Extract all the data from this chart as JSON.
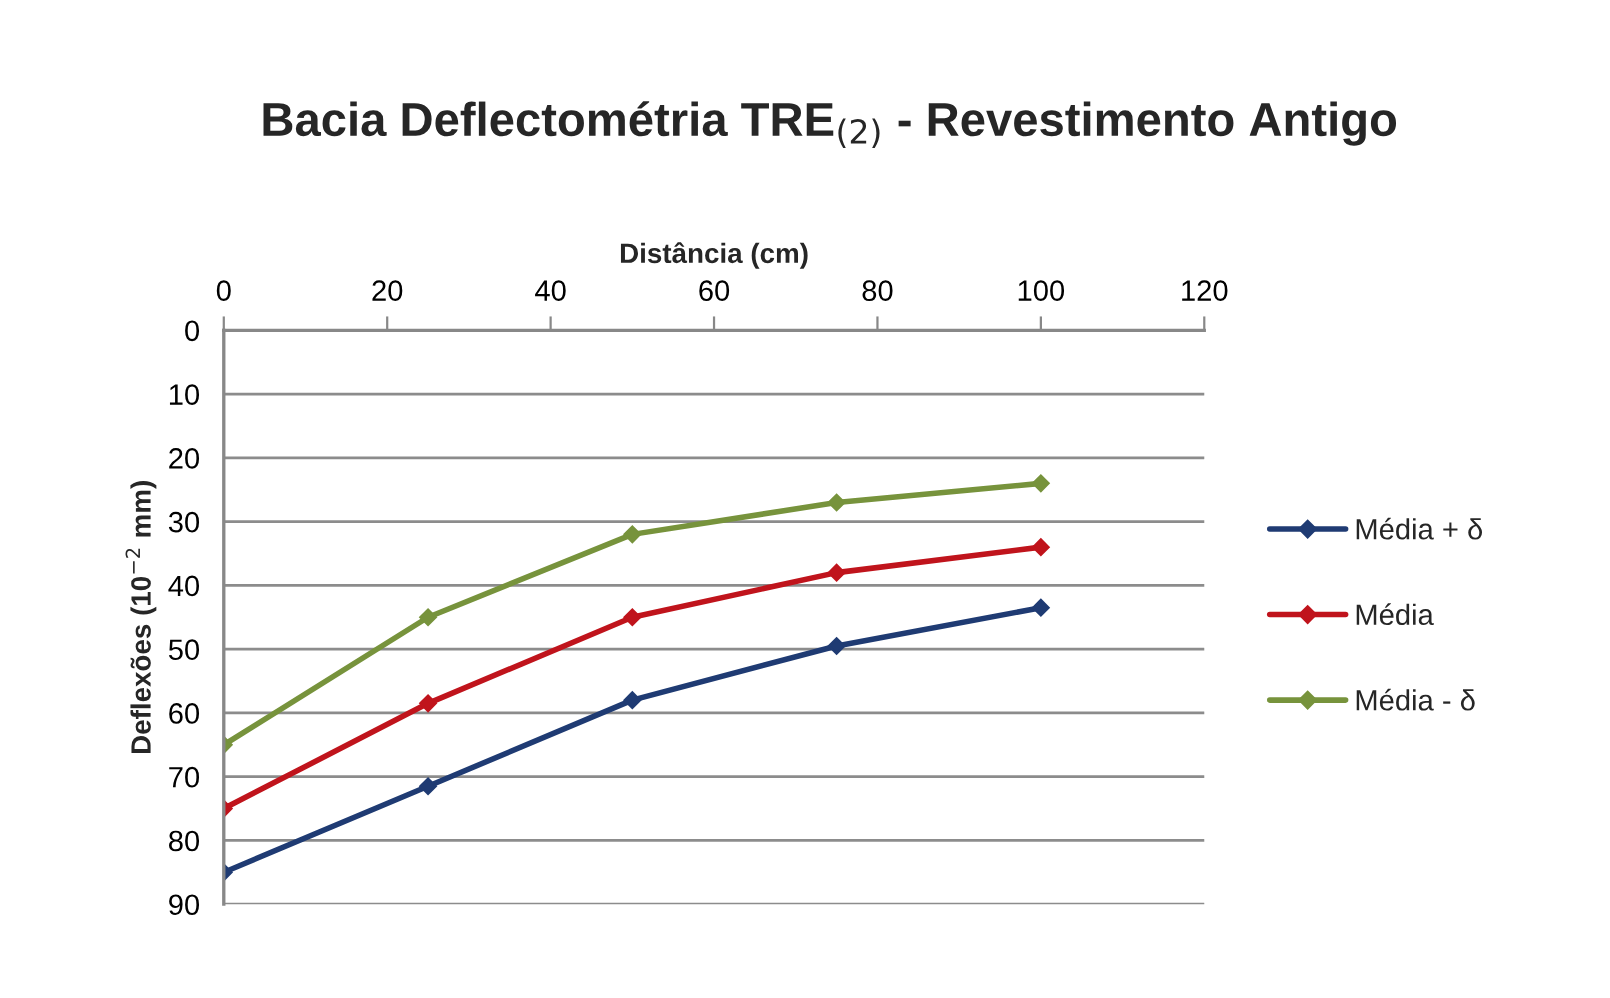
{
  "chart_data": {
    "type": "line",
    "title": "Bacia Deflectométria TRE$_{(2)}$ - Revestimento Antigo",
    "xlabel": "Distância (cm)",
    "ylabel": "Deflexões (10$^{−2}$ mm)",
    "x": [
      0,
      25,
      50,
      75,
      100
    ],
    "series": [
      {
        "name": "Média + δ",
        "color": "#1f3b73",
        "values": [
          85,
          71.5,
          58,
          49.5,
          43.5
        ]
      },
      {
        "name": "Média",
        "color": "#c0141c",
        "values": [
          75,
          58.5,
          45,
          38,
          34
        ]
      },
      {
        "name": "Média - δ",
        "color": "#77933c",
        "values": [
          65,
          45,
          32,
          27,
          24
        ]
      }
    ],
    "xlim": [
      0,
      120
    ],
    "xticks": [
      0,
      20,
      40,
      60,
      80,
      100,
      120
    ],
    "ylim": [
      90,
      0
    ],
    "yticks": [
      0,
      10,
      20,
      30,
      40,
      50,
      60,
      70,
      80,
      90
    ],
    "grid": "y",
    "legend": "right",
    "marker": "diamond",
    "line_style": "solid"
  }
}
